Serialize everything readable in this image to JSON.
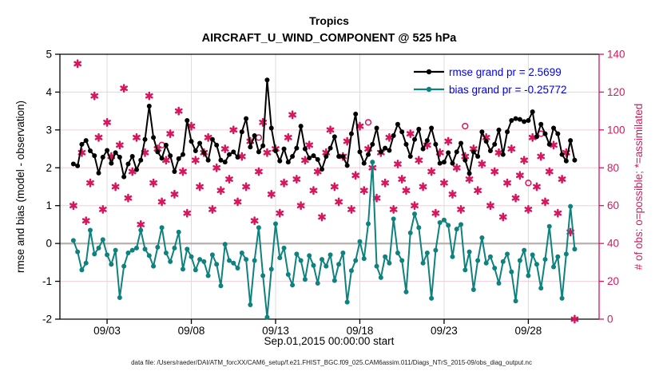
{
  "header": {
    "title": "Tropics",
    "subtitle": "AIRCRAFT_U_WIND_COMPONENT @ 525 hPa"
  },
  "legend": {
    "rmse_label": "rmse grand pr = 2.5699",
    "bias_label": "bias grand pr = -0.25772"
  },
  "footer": {
    "caption": "data file: /Users/raeder/DAI/ATM_forcXX/CAM6_setup/f.e21.FHIST_BGC.f09_025.CAM6assim.011/Diags_NTrS_2015-09/obs_diag_output.nc"
  },
  "chart_data": {
    "type": "line",
    "title": "Tropics",
    "subtitle": "AIRCRAFT_U_WIND_COMPONENT @ 525 hPa",
    "xlabel": "Sep.01,2015 00:00:00 start",
    "ylabel_left": "rmse and bias (model - observation)",
    "ylabel_right": "# of obs: o=possible; *=assimilated",
    "ylim_left": [
      -2,
      5
    ],
    "ylim_right": [
      0,
      140
    ],
    "y_ticks_left": [
      -2,
      -1,
      0,
      1,
      2,
      3,
      4,
      5
    ],
    "y_ticks_right": [
      0,
      20,
      40,
      60,
      80,
      100,
      120,
      140
    ],
    "x_domain_days": [
      -0.8,
      31.2
    ],
    "x_start_day": 0,
    "x_step_days": 0.25,
    "x_ticks": [
      {
        "day": 2,
        "label": "09/03"
      },
      {
        "day": 7,
        "label": "09/08"
      },
      {
        "day": 12,
        "label": "09/13"
      },
      {
        "day": 17,
        "label": "09/18"
      },
      {
        "day": 22,
        "label": "09/23"
      },
      {
        "day": 27,
        "label": "09/28"
      }
    ],
    "grid": true,
    "legend_position": "top-right-inside",
    "colors": {
      "rmse": "#000000",
      "bias": "#0e827e",
      "obs": "#d6175e",
      "legend_text": "#0000ee",
      "grid_h": "#f3cdd9",
      "grid_v": "#dcdcdc",
      "zero_line": "#b9b5b2",
      "axis": "#000000",
      "right_axis": "#d6175e"
    },
    "series": [
      {
        "name": "rmse",
        "axis": "left",
        "grand_pr": 2.5699,
        "marker": "dot",
        "values": [
          2.1,
          2.05,
          2.62,
          2.72,
          2.45,
          2.32,
          1.86,
          2.28,
          2.46,
          2.12,
          2.4,
          2.28,
          1.76,
          2.1,
          2.3,
          1.95,
          2.2,
          2.75,
          3.63,
          2.8,
          2.42,
          2.25,
          2.6,
          2.32,
          1.9,
          2.24,
          2.35,
          3.25,
          2.7,
          2.45,
          2.65,
          2.4,
          2.2,
          2.75,
          2.6,
          2.2,
          2.15,
          2.35,
          2.42,
          2.28,
          2.95,
          3.3,
          2.55,
          2.85,
          2.42,
          2.58,
          4.32,
          3.05,
          2.45,
          2.18,
          2.5,
          2.15,
          2.3,
          2.52,
          3.1,
          2.5,
          2.26,
          2.32,
          2.22,
          1.96,
          2.3,
          2.52,
          2.82,
          2.3,
          2.3,
          2.06,
          2.9,
          3.42,
          2.42,
          2.12,
          2.35,
          2.62,
          3.05,
          2.42,
          2.52,
          2.46,
          2.85,
          3.15,
          2.95,
          2.62,
          2.3,
          2.75,
          3.02,
          2.5,
          2.72,
          3.05,
          2.62,
          2.12,
          2.15,
          2.4,
          2.12,
          2.42,
          2.65,
          2.2,
          1.85,
          2.42,
          2.3,
          2.95,
          2.7,
          2.45,
          2.62,
          3.0,
          2.35,
          2.95,
          3.25,
          3.3,
          3.28,
          3.22,
          3.25,
          3.48,
          2.82,
          3.15,
          2.9,
          2.62,
          3.05,
          2.9,
          2.35,
          2.18,
          2.72,
          2.2
        ]
      },
      {
        "name": "bias",
        "axis": "left",
        "grand_pr": -0.25772,
        "marker": "dot",
        "values": [
          0.08,
          -0.22,
          -0.7,
          -0.52,
          0.35,
          -0.28,
          -0.12,
          0.1,
          -0.3,
          -0.55,
          -0.18,
          -1.43,
          -0.6,
          -0.25,
          -0.18,
          -0.12,
          0.35,
          -0.15,
          -0.32,
          -0.6,
          -0.1,
          0.42,
          -0.25,
          -0.48,
          -0.12,
          0.3,
          -0.68,
          -0.15,
          -0.35,
          -0.7,
          -0.42,
          -0.48,
          -0.85,
          -0.3,
          -0.55,
          -1.12,
          -0.02,
          -0.45,
          -0.52,
          -0.65,
          -0.25,
          -0.42,
          -1.62,
          -0.45,
          0.42,
          -0.85,
          -1.95,
          -0.68,
          0.52,
          -0.38,
          -0.12,
          -0.82,
          -1.1,
          -0.28,
          -0.45,
          -0.95,
          -0.32,
          -0.58,
          -1.05,
          -0.42,
          -0.6,
          -0.3,
          -0.98,
          -0.55,
          -0.25,
          -1.55,
          -0.72,
          -0.45,
          0.05,
          -0.4,
          0.52,
          2.15,
          -0.6,
          -0.9,
          -0.35,
          -0.52,
          0.65,
          -0.25,
          -0.45,
          -1.28,
          0.28,
          0.78,
          0.42,
          -0.52,
          -0.25,
          -1.45,
          -0.18,
          0.55,
          0.62,
          0.48,
          -0.35,
          0.38,
          0.5,
          -0.7,
          -0.22,
          -1.22,
          -0.45,
          0.15,
          -0.52,
          -0.35,
          -0.65,
          -1.05,
          -0.48,
          -0.28,
          -0.75,
          -1.52,
          -0.45,
          -0.18,
          -0.85,
          -0.3,
          -0.55,
          -1.18,
          -0.42,
          0.45,
          -0.62,
          -0.35,
          -1.45,
          -0.28,
          0.98,
          -0.15
        ]
      },
      {
        "name": "obs_assimilated",
        "axis": "right",
        "marker": "asterisk",
        "values": [
          60,
          135,
          88,
          52,
          72,
          118,
          96,
          58,
          104,
          86,
          70,
          92,
          122,
          64,
          78,
          96,
          50,
          88,
          118,
          72,
          90,
          62,
          84,
          98,
          66,
          110,
          78,
          56,
          102,
          84,
          70,
          88,
          96,
          58,
          80,
          68,
          90,
          74,
          100,
          62,
          86,
          70,
          94,
          52,
          78,
          104,
          88,
          66,
          90,
          56,
          72,
          96,
          108,
          74,
          60,
          84,
          92,
          68,
          78,
          54,
          88,
          100,
          70,
          62,
          86,
          94,
          58,
          76,
          102,
          68,
          90,
          80,
          64,
          88,
          72,
          96,
          58,
          82,
          74,
          68,
          98,
          60,
          84,
          70,
          92,
          78,
          56,
          88,
          72,
          94,
          66,
          80,
          58,
          86,
          74,
          90,
          68,
          82,
          96,
          60,
          78,
          88,
          54,
          72,
          90,
          64,
          76,
          84,
          58,
          96,
          70,
          86,
          62,
          78,
          92,
          56,
          74,
          88,
          46,
          0
        ]
      }
    ],
    "obs_possible_points": [
      {
        "index": 21,
        "value": 92
      },
      {
        "index": 44,
        "value": 96
      },
      {
        "index": 70,
        "value": 104
      },
      {
        "index": 93,
        "value": 102
      },
      {
        "index": 108,
        "value": 72
      },
      {
        "index": 111,
        "value": 98
      }
    ]
  }
}
